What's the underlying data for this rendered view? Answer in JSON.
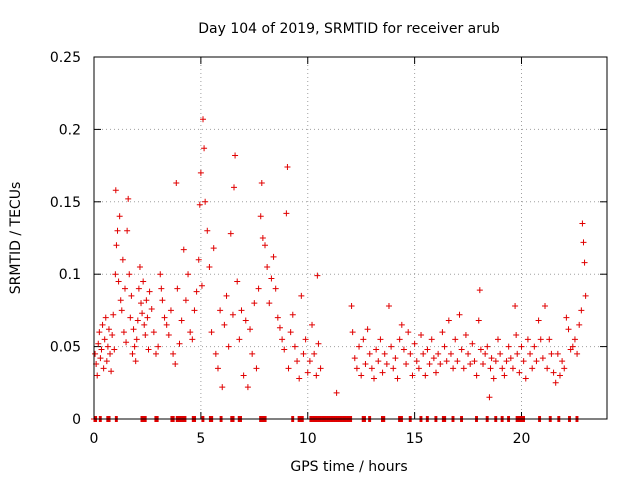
{
  "chart_data": {
    "type": "scatter",
    "title": "Day 104 of 2019, SRMTID for receiver arub",
    "xlabel": "GPS time / hours",
    "ylabel": "SRMTID / TECUs",
    "xlim": [
      0,
      24
    ],
    "ylim": [
      0,
      0.25
    ],
    "xticks": [
      0,
      5,
      10,
      15,
      20
    ],
    "xtick_labels": [
      "0",
      "5",
      "10",
      "15",
      "20"
    ],
    "yticks": [
      0,
      0.05,
      0.1,
      0.15,
      0.2,
      0.25
    ],
    "ytick_labels": [
      "0",
      "0.05",
      "0.1",
      "0.15",
      "0.2",
      "0.25"
    ],
    "grid": true,
    "marker": "+",
    "color": "#e00000",
    "series": [
      {
        "name": "SRMTID",
        "points": [
          [
            0.05,
            0.045
          ],
          [
            0.1,
            0.038
          ],
          [
            0.15,
            0.03
          ],
          [
            0.2,
            0.052
          ],
          [
            0.25,
            0.06
          ],
          [
            0.3,
            0.042
          ],
          [
            0.35,
            0.048
          ],
          [
            0.4,
            0.065
          ],
          [
            0.45,
            0.035
          ],
          [
            0.5,
            0.055
          ],
          [
            0.55,
            0.07
          ],
          [
            0.6,
            0.04
          ],
          [
            0.65,
            0.05
          ],
          [
            0.7,
            0.062
          ],
          [
            0.75,
            0.045
          ],
          [
            0.8,
            0.033
          ],
          [
            0.85,
            0.058
          ],
          [
            0.9,
            0.072
          ],
          [
            0.95,
            0.048
          ],
          [
            1.0,
            0.1
          ],
          [
            1.02,
            0.158
          ],
          [
            1.05,
            0.12
          ],
          [
            1.1,
            0.13
          ],
          [
            1.15,
            0.095
          ],
          [
            1.2,
            0.14
          ],
          [
            1.25,
            0.082
          ],
          [
            1.3,
            0.075
          ],
          [
            1.35,
            0.11
          ],
          [
            1.4,
            0.06
          ],
          [
            1.45,
            0.09
          ],
          [
            1.5,
            0.053
          ],
          [
            1.55,
            0.13
          ],
          [
            1.6,
            0.152
          ],
          [
            1.65,
            0.1
          ],
          [
            1.7,
            0.07
          ],
          [
            1.75,
            0.085
          ],
          [
            1.8,
            0.045
          ],
          [
            1.85,
            0.062
          ],
          [
            1.9,
            0.05
          ],
          [
            1.95,
            0.04
          ],
          [
            2.0,
            0.055
          ],
          [
            2.05,
            0.068
          ],
          [
            2.1,
            0.09
          ],
          [
            2.15,
            0.105
          ],
          [
            2.2,
            0.08
          ],
          [
            2.25,
            0.073
          ],
          [
            2.3,
            0.095
          ],
          [
            2.35,
            0.065
          ],
          [
            2.4,
            0.058
          ],
          [
            2.45,
            0.082
          ],
          [
            2.5,
            0.07
          ],
          [
            2.55,
            0.048
          ],
          [
            2.6,
            0.088
          ],
          [
            2.7,
            0.076
          ],
          [
            2.8,
            0.06
          ],
          [
            2.9,
            0.045
          ],
          [
            3.0,
            0.05
          ],
          [
            3.1,
            0.1
          ],
          [
            3.15,
            0.09
          ],
          [
            3.2,
            0.082
          ],
          [
            3.3,
            0.07
          ],
          [
            3.4,
            0.065
          ],
          [
            3.5,
            0.058
          ],
          [
            3.6,
            0.075
          ],
          [
            3.7,
            0.045
          ],
          [
            3.8,
            0.038
          ],
          [
            3.85,
            0.163
          ],
          [
            3.9,
            0.09
          ],
          [
            4.0,
            0.052
          ],
          [
            4.1,
            0.068
          ],
          [
            4.2,
            0.117
          ],
          [
            4.3,
            0.082
          ],
          [
            4.4,
            0.1
          ],
          [
            4.5,
            0.06
          ],
          [
            4.6,
            0.055
          ],
          [
            4.7,
            0.075
          ],
          [
            4.8,
            0.088
          ],
          [
            4.9,
            0.11
          ],
          [
            4.95,
            0.148
          ],
          [
            5.0,
            0.17
          ],
          [
            5.05,
            0.092
          ],
          [
            5.1,
            0.207
          ],
          [
            5.15,
            0.187
          ],
          [
            5.2,
            0.15
          ],
          [
            5.3,
            0.13
          ],
          [
            5.4,
            0.105
          ],
          [
            5.5,
            0.06
          ],
          [
            5.6,
            0.118
          ],
          [
            5.7,
            0.045
          ],
          [
            5.8,
            0.035
          ],
          [
            5.9,
            0.075
          ],
          [
            6.0,
            0.022
          ],
          [
            6.1,
            0.065
          ],
          [
            6.2,
            0.085
          ],
          [
            6.3,
            0.05
          ],
          [
            6.4,
            0.128
          ],
          [
            6.5,
            0.072
          ],
          [
            6.55,
            0.16
          ],
          [
            6.6,
            0.182
          ],
          [
            6.7,
            0.095
          ],
          [
            6.8,
            0.055
          ],
          [
            6.9,
            0.075
          ],
          [
            7.0,
            0.03
          ],
          [
            7.1,
            0.068
          ],
          [
            7.2,
            0.022
          ],
          [
            7.3,
            0.062
          ],
          [
            7.4,
            0.045
          ],
          [
            7.5,
            0.08
          ],
          [
            7.6,
            0.035
          ],
          [
            7.7,
            0.09
          ],
          [
            7.8,
            0.14
          ],
          [
            7.85,
            0.163
          ],
          [
            7.9,
            0.125
          ],
          [
            8.0,
            0.12
          ],
          [
            8.1,
            0.105
          ],
          [
            8.2,
            0.08
          ],
          [
            8.3,
            0.097
          ],
          [
            8.4,
            0.112
          ],
          [
            8.5,
            0.09
          ],
          [
            8.6,
            0.07
          ],
          [
            8.7,
            0.063
          ],
          [
            8.8,
            0.055
          ],
          [
            8.9,
            0.048
          ],
          [
            9.0,
            0.142
          ],
          [
            9.05,
            0.174
          ],
          [
            9.1,
            0.035
          ],
          [
            9.2,
            0.06
          ],
          [
            9.3,
            0.072
          ],
          [
            9.4,
            0.05
          ],
          [
            9.5,
            0.04
          ],
          [
            9.6,
            0.028
          ],
          [
            9.7,
            0.085
          ],
          [
            9.8,
            0.045
          ],
          [
            9.9,
            0.055
          ],
          [
            10.0,
            0.032
          ],
          [
            10.1,
            0.04
          ],
          [
            10.2,
            0.065
          ],
          [
            10.3,
            0.045
          ],
          [
            10.4,
            0.03
          ],
          [
            10.45,
            0.099
          ],
          [
            10.5,
            0.052
          ],
          [
            10.6,
            0.035
          ],
          [
            11.35,
            0.018
          ],
          [
            12.05,
            0.078
          ],
          [
            12.1,
            0.06
          ],
          [
            12.2,
            0.042
          ],
          [
            12.3,
            0.035
          ],
          [
            12.4,
            0.05
          ],
          [
            12.5,
            0.03
          ],
          [
            12.6,
            0.055
          ],
          [
            12.7,
            0.038
          ],
          [
            12.8,
            0.062
          ],
          [
            12.9,
            0.045
          ],
          [
            13.0,
            0.035
          ],
          [
            13.1,
            0.028
          ],
          [
            13.2,
            0.048
          ],
          [
            13.3,
            0.04
          ],
          [
            13.4,
            0.055
          ],
          [
            13.5,
            0.032
          ],
          [
            13.6,
            0.045
          ],
          [
            13.7,
            0.038
          ],
          [
            13.8,
            0.078
          ],
          [
            13.9,
            0.05
          ],
          [
            14.0,
            0.035
          ],
          [
            14.1,
            0.042
          ],
          [
            14.2,
            0.028
          ],
          [
            14.3,
            0.055
          ],
          [
            14.4,
            0.065
          ],
          [
            14.5,
            0.048
          ],
          [
            14.6,
            0.038
          ],
          [
            14.7,
            0.06
          ],
          [
            14.8,
            0.045
          ],
          [
            14.9,
            0.03
          ],
          [
            15.0,
            0.052
          ],
          [
            15.1,
            0.04
          ],
          [
            15.2,
            0.035
          ],
          [
            15.3,
            0.058
          ],
          [
            15.4,
            0.045
          ],
          [
            15.5,
            0.03
          ],
          [
            15.6,
            0.048
          ],
          [
            15.7,
            0.038
          ],
          [
            15.8,
            0.055
          ],
          [
            15.9,
            0.042
          ],
          [
            16.0,
            0.032
          ],
          [
            16.1,
            0.045
          ],
          [
            16.2,
            0.038
          ],
          [
            16.3,
            0.06
          ],
          [
            16.4,
            0.05
          ],
          [
            16.5,
            0.04
          ],
          [
            16.6,
            0.068
          ],
          [
            16.7,
            0.045
          ],
          [
            16.8,
            0.035
          ],
          [
            16.9,
            0.055
          ],
          [
            17.0,
            0.04
          ],
          [
            17.1,
            0.072
          ],
          [
            17.2,
            0.048
          ],
          [
            17.3,
            0.035
          ],
          [
            17.4,
            0.058
          ],
          [
            17.5,
            0.045
          ],
          [
            17.6,
            0.038
          ],
          [
            17.7,
            0.052
          ],
          [
            17.8,
            0.04
          ],
          [
            17.9,
            0.03
          ],
          [
            18.0,
            0.068
          ],
          [
            18.05,
            0.089
          ],
          [
            18.1,
            0.048
          ],
          [
            18.2,
            0.038
          ],
          [
            18.3,
            0.045
          ],
          [
            18.4,
            0.05
          ],
          [
            18.5,
            0.015
          ],
          [
            18.55,
            0.035
          ],
          [
            18.6,
            0.042
          ],
          [
            18.7,
            0.028
          ],
          [
            18.8,
            0.04
          ],
          [
            18.9,
            0.055
          ],
          [
            19.0,
            0.045
          ],
          [
            19.1,
            0.035
          ],
          [
            19.2,
            0.03
          ],
          [
            19.3,
            0.04
          ],
          [
            19.4,
            0.05
          ],
          [
            19.5,
            0.042
          ],
          [
            19.6,
            0.035
          ],
          [
            19.7,
            0.078
          ],
          [
            19.75,
            0.058
          ],
          [
            19.8,
            0.045
          ],
          [
            19.9,
            0.032
          ],
          [
            20.0,
            0.05
          ],
          [
            20.1,
            0.04
          ],
          [
            20.2,
            0.028
          ],
          [
            20.3,
            0.055
          ],
          [
            20.4,
            0.045
          ],
          [
            20.5,
            0.035
          ],
          [
            20.6,
            0.05
          ],
          [
            20.7,
            0.04
          ],
          [
            20.8,
            0.068
          ],
          [
            20.9,
            0.055
          ],
          [
            21.0,
            0.042
          ],
          [
            21.1,
            0.078
          ],
          [
            21.2,
            0.035
          ],
          [
            21.3,
            0.055
          ],
          [
            21.4,
            0.045
          ],
          [
            21.5,
            0.032
          ],
          [
            21.6,
            0.025
          ],
          [
            21.7,
            0.045
          ],
          [
            21.8,
            0.03
          ],
          [
            21.9,
            0.04
          ],
          [
            22.0,
            0.035
          ],
          [
            22.1,
            0.07
          ],
          [
            22.2,
            0.062
          ],
          [
            22.3,
            0.048
          ],
          [
            22.4,
            0.05
          ],
          [
            22.5,
            0.055
          ],
          [
            22.6,
            0.045
          ],
          [
            22.7,
            0.065
          ],
          [
            22.8,
            0.075
          ],
          [
            22.85,
            0.135
          ],
          [
            22.9,
            0.122
          ],
          [
            22.95,
            0.108
          ],
          [
            23.0,
            0.085
          ]
        ]
      }
    ],
    "zero_intervals": [
      [
        0.0,
        0.12
      ],
      [
        0.25,
        0.35
      ],
      [
        0.6,
        0.75
      ],
      [
        1.0,
        1.1
      ],
      [
        2.2,
        2.45
      ],
      [
        2.85,
        3.0
      ],
      [
        3.6,
        3.75
      ],
      [
        3.85,
        4.3
      ],
      [
        4.6,
        4.75
      ],
      [
        5.05,
        5.15
      ],
      [
        5.4,
        5.55
      ],
      [
        5.9,
        6.0
      ],
      [
        6.4,
        6.55
      ],
      [
        6.75,
        6.9
      ],
      [
        7.75,
        8.05
      ],
      [
        9.25,
        9.35
      ],
      [
        9.55,
        9.8
      ],
      [
        10.1,
        12.05
      ],
      [
        12.55,
        12.7
      ],
      [
        12.85,
        12.95
      ],
      [
        13.45,
        13.6
      ],
      [
        14.25,
        14.45
      ],
      [
        14.75,
        14.85
      ],
      [
        15.25,
        15.35
      ],
      [
        15.55,
        15.65
      ],
      [
        15.95,
        16.05
      ],
      [
        16.3,
        16.45
      ],
      [
        16.75,
        16.85
      ],
      [
        17.15,
        17.25
      ],
      [
        17.85,
        17.95
      ],
      [
        18.35,
        18.45
      ],
      [
        18.75,
        18.85
      ],
      [
        19.05,
        19.15
      ],
      [
        19.35,
        19.45
      ],
      [
        19.75,
        20.15
      ],
      [
        20.8,
        20.9
      ],
      [
        21.3,
        21.4
      ],
      [
        21.7,
        21.8
      ],
      [
        22.2,
        22.3
      ],
      [
        22.55,
        22.65
      ]
    ]
  }
}
